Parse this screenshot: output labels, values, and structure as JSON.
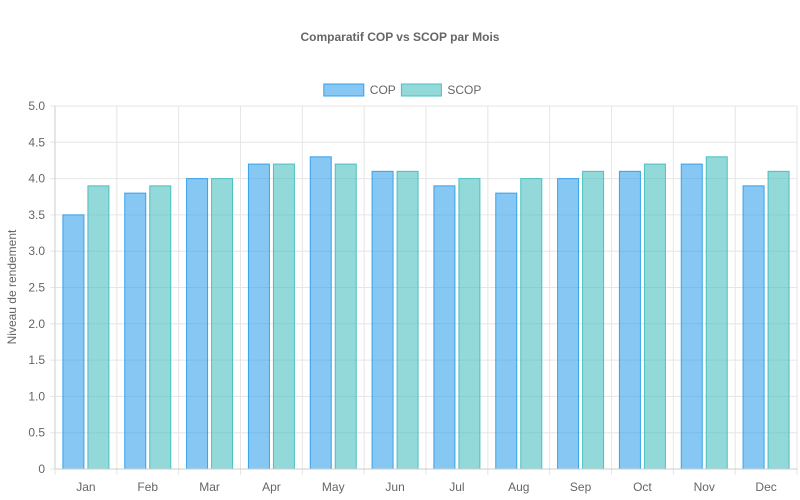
{
  "chart_data": {
    "type": "bar",
    "title": "Comparatif COP vs SCOP par Mois",
    "xlabel": "",
    "ylabel": "Niveau de rendement",
    "ylim": [
      0,
      5
    ],
    "yticks": [
      "0",
      "0.5",
      "1.0",
      "1.5",
      "2.0",
      "2.5",
      "3.0",
      "3.5",
      "4.0",
      "4.5",
      "5.0"
    ],
    "categories": [
      "Jan",
      "Feb",
      "Mar",
      "Apr",
      "May",
      "Jun",
      "Jul",
      "Aug",
      "Sep",
      "Oct",
      "Nov",
      "Dec"
    ],
    "legend_position": "top",
    "grid": true,
    "series": [
      {
        "name": "COP",
        "color": "#36a2eb",
        "fill": "rgba(54,162,235,0.6)",
        "values": [
          3.5,
          3.8,
          4.0,
          4.2,
          4.3,
          4.1,
          3.9,
          3.8,
          4.0,
          4.1,
          4.2,
          3.9
        ]
      },
      {
        "name": "SCOP",
        "color": "#4bc0c0",
        "fill": "rgba(75,192,192,0.6)",
        "values": [
          3.9,
          3.9,
          4.0,
          4.2,
          4.2,
          4.1,
          4.0,
          4.0,
          4.1,
          4.2,
          4.3,
          4.1
        ]
      }
    ]
  }
}
